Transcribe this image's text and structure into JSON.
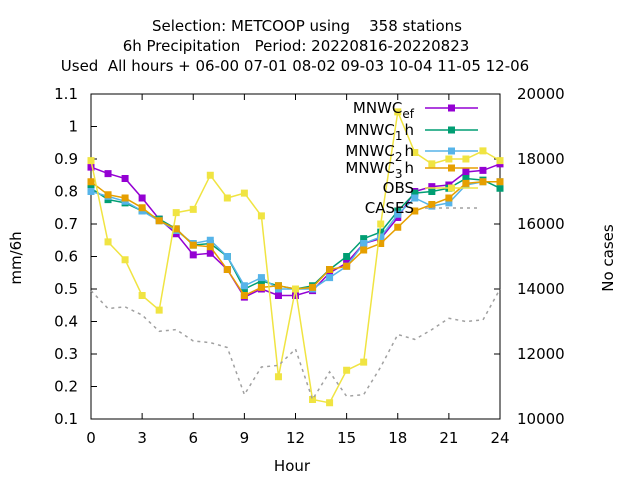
{
  "chart_data": {
    "type": "line",
    "title_lines": [
      "Selection: METCOOP using    358 stations",
      "6h Precipitation   Period: 20220816-20220823",
      "Used  All hours + 06-00 07-01 08-02 09-03 10-04 11-05 12-06"
    ],
    "xlabel": "Hour",
    "ylabel": "mm/6h",
    "y2label": "No cases",
    "xlim": [
      0,
      24
    ],
    "ylim": [
      0.1,
      1.1
    ],
    "y2lim": [
      10000,
      20000
    ],
    "xticks": [
      "0",
      "3",
      "6",
      "9",
      "12",
      "15",
      "18",
      "21",
      "24"
    ],
    "yticks": [
      "0.1",
      "0.2",
      "0.3",
      "0.4",
      "0.5",
      "0.6",
      "0.7",
      "0.8",
      "0.9",
      "1",
      "1.1"
    ],
    "y2ticks": [
      "10000",
      "12000",
      "14000",
      "16000",
      "18000",
      "20000"
    ],
    "grid": false,
    "legend_position": "top-right",
    "x": [
      0,
      1,
      2,
      3,
      4,
      5,
      6,
      7,
      8,
      9,
      10,
      11,
      12,
      13,
      14,
      15,
      16,
      17,
      18,
      19,
      20,
      21,
      22,
      23,
      24
    ],
    "series": [
      {
        "name": "MNWC_ef",
        "legend_base": "MNWC",
        "legend_sub": "ef",
        "color": "#9400d3",
        "marker": "square",
        "axis": "y1",
        "values": [
          0.875,
          0.855,
          0.84,
          0.78,
          0.715,
          0.67,
          0.605,
          0.61,
          0.56,
          0.475,
          0.5,
          0.48,
          0.48,
          0.495,
          0.55,
          0.58,
          0.64,
          0.655,
          0.72,
          0.8,
          0.815,
          0.82,
          0.86,
          0.865,
          0.885
        ]
      },
      {
        "name": "MNWC_1h",
        "legend_base": "MNWC",
        "legend_sub": "1",
        "legend_suffix": "h",
        "color": "#009e73",
        "marker": "square",
        "axis": "y1",
        "values": [
          0.81,
          0.775,
          0.765,
          0.74,
          0.715,
          0.685,
          0.635,
          0.64,
          0.6,
          0.5,
          0.525,
          0.51,
          0.5,
          0.51,
          0.56,
          0.6,
          0.655,
          0.675,
          0.74,
          0.795,
          0.8,
          0.81,
          0.84,
          0.835,
          0.81
        ]
      },
      {
        "name": "MNWC_2h",
        "legend_base": "MNWC",
        "legend_sub": "2",
        "legend_suffix": "h",
        "color": "#56b4e9",
        "marker": "square",
        "axis": "y1",
        "values": [
          0.8,
          0.785,
          0.77,
          0.74,
          0.71,
          0.68,
          0.64,
          0.65,
          0.6,
          0.51,
          0.535,
          0.5,
          0.5,
          0.5,
          0.535,
          0.57,
          0.64,
          0.66,
          0.73,
          0.78,
          0.755,
          0.765,
          0.82,
          0.83,
          0.83
        ]
      },
      {
        "name": "MNWC_3h",
        "legend_base": "MNWC",
        "legend_sub": "3",
        "legend_suffix": "h",
        "color": "#e69f00",
        "marker": "square",
        "axis": "y1",
        "values": [
          0.83,
          0.79,
          0.78,
          0.75,
          0.71,
          0.685,
          0.635,
          0.63,
          0.56,
          0.48,
          0.505,
          0.51,
          0.5,
          0.505,
          0.56,
          0.57,
          0.62,
          0.64,
          0.69,
          0.74,
          0.76,
          0.78,
          0.825,
          0.83,
          0.83
        ]
      },
      {
        "name": "OBS",
        "color": "#f0e442",
        "marker": "square",
        "axis": "y1",
        "values": [
          0.895,
          0.645,
          0.59,
          0.48,
          0.435,
          0.735,
          0.745,
          0.85,
          0.78,
          0.795,
          0.725,
          0.23,
          0.5,
          0.16,
          0.15,
          0.25,
          0.275,
          0.7,
          1.045,
          0.92,
          0.885,
          0.9,
          0.9,
          0.925,
          0.895
        ]
      },
      {
        "name": "CASES",
        "color": "#a0a0a0",
        "marker": "none",
        "dashed": true,
        "axis": "y2",
        "values": [
          13950,
          13400,
          13450,
          13200,
          12700,
          12750,
          12400,
          12350,
          12200,
          10750,
          11600,
          11650,
          12150,
          10600,
          11450,
          10700,
          10750,
          11600,
          12600,
          12450,
          12750,
          13100,
          13000,
          13050,
          14000
        ]
      }
    ]
  }
}
